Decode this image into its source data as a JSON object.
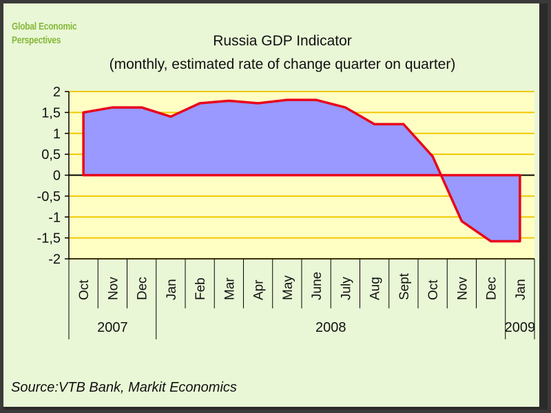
{
  "logo": {
    "line1": "Global Economic",
    "line2": "Perspectives"
  },
  "source": "Source:VTB Bank, Markit Economics",
  "colors": {
    "plot_bg": "#ffffc4",
    "grid": "#f0c800",
    "area_fill": "#9999ff",
    "line": "#e8001c"
  },
  "chart_data": {
    "type": "area",
    "title": "Russia GDP Indicator",
    "subtitle": "(monthly, estimated rate of change quarter on quarter)",
    "xlabel": "",
    "ylabel": "",
    "ylim": [
      -2,
      2
    ],
    "yticks": [
      "2",
      "1,5",
      "1",
      "0,5",
      "0",
      "-0,5",
      "-1",
      "-1,5",
      "-2"
    ],
    "categories": [
      "Oct",
      "Nov",
      "Dec",
      "Jan",
      "Feb",
      "Mar",
      "Apr",
      "May",
      "June",
      "July",
      "Aug",
      "Sept",
      "Oct",
      "Nov",
      "Dec",
      "Jan"
    ],
    "years": [
      {
        "label": "2007",
        "from": 0,
        "to": 2
      },
      {
        "label": "2008",
        "from": 3,
        "to": 14
      },
      {
        "label": "2009",
        "from": 15,
        "to": 15
      }
    ],
    "series": [
      {
        "name": "Russia GDP Indicator",
        "values": [
          1.5,
          1.62,
          1.62,
          1.4,
          1.72,
          1.78,
          1.72,
          1.8,
          1.8,
          1.62,
          1.22,
          1.22,
          0.45,
          -1.1,
          -1.58,
          -1.58
        ]
      }
    ]
  }
}
